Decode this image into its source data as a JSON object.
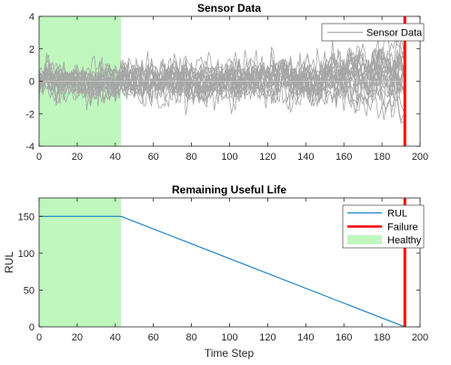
{
  "colors": {
    "sensor": "#a6a6a6",
    "rul": "#0072bd",
    "failure": "#ff0000",
    "healthy": "#bff7bf",
    "axis": "#262626"
  },
  "chart_data": [
    {
      "type": "line",
      "title": "Sensor Data",
      "xlabel": "",
      "ylabel": "",
      "xlim": [
        0,
        200
      ],
      "ylim": [
        -4,
        4
      ],
      "xticks": [
        0,
        20,
        40,
        60,
        80,
        100,
        120,
        140,
        160,
        180,
        200
      ],
      "yticks": [
        -4,
        -2,
        0,
        2,
        4
      ],
      "legend": {
        "placement": "top-right",
        "entries": [
          "Sensor Data"
        ]
      },
      "healthy_region": [
        0,
        43
      ],
      "failure_x": 192,
      "series": {
        "name": "Sensor Data",
        "count": 20,
        "x_range": [
          0,
          192
        ],
        "noise_sd_start": 0.8,
        "noise_sd_end": 1.2,
        "drift_at_failure_range": [
          -1.8,
          1.8
        ]
      }
    },
    {
      "type": "line",
      "title": "Remaining Useful Life",
      "xlabel": "Time Step",
      "ylabel": "RUL",
      "xlim": [
        0,
        200
      ],
      "ylim": [
        0,
        175
      ],
      "xticks": [
        0,
        20,
        40,
        60,
        80,
        100,
        120,
        140,
        160,
        180,
        200
      ],
      "yticks": [
        0,
        50,
        100,
        150
      ],
      "legend": {
        "placement": "top-right",
        "entries": [
          "RUL",
          "Failure",
          "Healthy"
        ]
      },
      "series": [
        {
          "name": "RUL",
          "x": [
            0,
            43,
            192
          ],
          "y": [
            150,
            150,
            0
          ]
        }
      ],
      "failure_x": 192,
      "healthy_region": [
        0,
        43
      ]
    }
  ]
}
